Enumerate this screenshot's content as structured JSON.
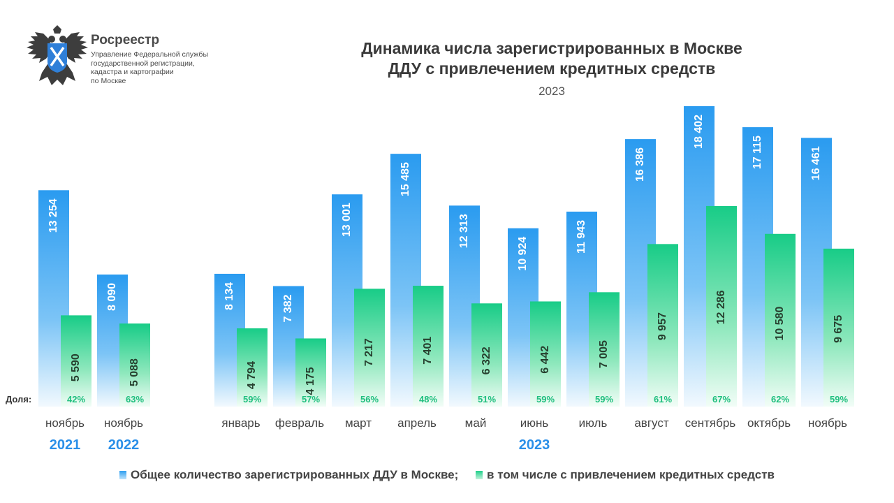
{
  "header": {
    "org_name": "Росреестр",
    "org_sub": [
      "Управление Федеральной службы",
      "государственной регистрации,",
      "кадастра и картографии",
      "по Москве"
    ],
    "logo_icon": "double-headed-eagle-icon"
  },
  "chart_data": {
    "type": "bar",
    "title": "Динамика числа зарегистрированных в Москве ДДУ с привлечением кредитных средств",
    "title_lines": [
      "Динамика числа зарегистрированных в Москве",
      "ДДУ с привлечением кредитных средств"
    ],
    "subtitle": "2023",
    "share_label": "Доля:",
    "categories": [
      "ноябрь",
      "ноябрь",
      "январь",
      "февраль",
      "март",
      "апрель",
      "май",
      "июнь",
      "июль",
      "август",
      "сентябрь",
      "октябрь",
      "ноябрь"
    ],
    "year_labels": [
      {
        "text": "2021",
        "categories": [
          0
        ]
      },
      {
        "text": "2022",
        "categories": [
          1
        ]
      },
      {
        "text": "2023",
        "categories": [
          2,
          3,
          4,
          5,
          6,
          7,
          8,
          9,
          10,
          11,
          12
        ]
      }
    ],
    "series": [
      {
        "name": "Общее количество зарегистрированных ДДУ в Москве;",
        "values": [
          13254,
          8090,
          8134,
          7382,
          13001,
          15485,
          12313,
          10924,
          11943,
          16386,
          18402,
          17115,
          16461
        ],
        "labels": [
          "13 254",
          "8 090",
          "8 134",
          "7 382",
          "13 001",
          "15 485",
          "12 313",
          "10 924",
          "11 943",
          "16 386",
          "18 402",
          "17 115",
          "16 461"
        ],
        "color": "#2f9ff0"
      },
      {
        "name": "в том числе с привлечением кредитных средств",
        "values": [
          5590,
          5088,
          4794,
          4175,
          7217,
          7401,
          6322,
          6442,
          7005,
          9957,
          12286,
          10580,
          9675
        ],
        "labels": [
          "5 590",
          "5 088",
          "4 794",
          "4 175",
          "7 217",
          "7 401",
          "6 322",
          "6 442",
          "7 005",
          "9 957",
          "12 286",
          "10 580",
          "9 675"
        ],
        "color": "#1fcf8a"
      }
    ],
    "shares": [
      "42%",
      "63%",
      "59%",
      "57%",
      "56%",
      "48%",
      "51%",
      "59%",
      "59%",
      "61%",
      "67%",
      "62%",
      "59%"
    ],
    "ylim": [
      0,
      18402
    ],
    "grid": false,
    "legend": "bottom"
  }
}
